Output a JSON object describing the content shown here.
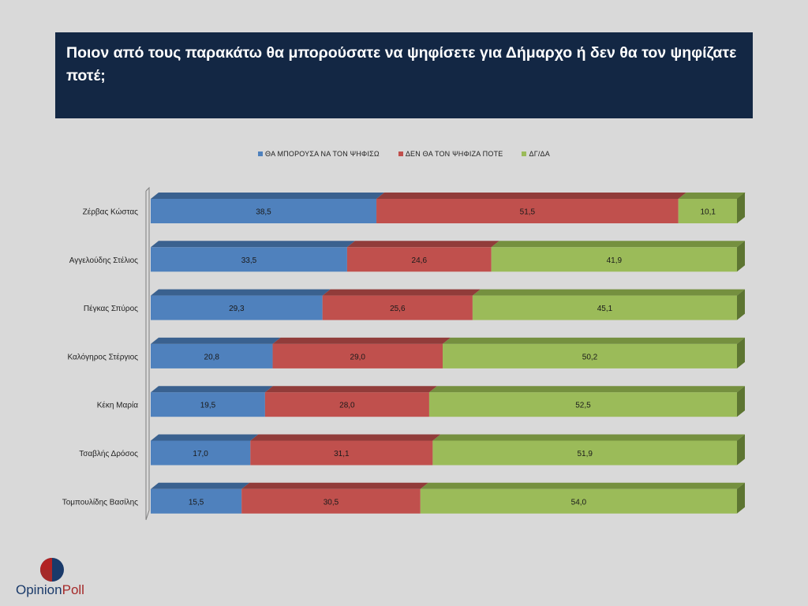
{
  "header": {
    "title": "Ποιον από τους παρακάτω θα μπορούσατε να ψηφίσετε για Δήμαρχο ή  δεν θα τον ψηφίζατε ποτέ;"
  },
  "brand": {
    "name_part1": "Opinion",
    "name_part2": "Poll"
  },
  "colors": {
    "background": "#d9d9d9",
    "title_bg": "#132744",
    "series_front": [
      "#4f81bd",
      "#c0504d",
      "#9bbb59"
    ],
    "series_top": [
      "#3a618f",
      "#913c3a",
      "#75903f"
    ],
    "series_side": [
      "#2f4f75",
      "#7a3230",
      "#5d7532"
    ]
  },
  "chart_data": {
    "type": "bar",
    "orientation": "horizontal",
    "stacked": true,
    "percent": true,
    "title": "Ποιον από τους παρακάτω θα μπορούσατε να ψηφίσετε για Δήμαρχο ή  δεν θα τον ψηφίζατε ποτέ;",
    "xlim": [
      0,
      100
    ],
    "legend_position": "top",
    "categories": [
      "Ζέρβας Κώστας",
      "Αγγελούδης Στέλιος",
      "Πέγκας Σπύρος",
      "Καλόγηρος Στέργιος",
      "Κέκη Μαρία",
      "Τσαβλής Δρόσος",
      "Τομπουλίδης Βασίλης"
    ],
    "series": [
      {
        "name": "ΘΑ ΜΠΟΡΟΥΣΑ ΝΑ ΤΟΝ ΨΗΦΙΣΩ",
        "values": [
          38.5,
          33.5,
          29.3,
          20.8,
          19.5,
          17.0,
          15.5
        ],
        "labels": [
          "38,5",
          "33,5",
          "29,3",
          "20,8",
          "19,5",
          "17,0",
          "15,5"
        ]
      },
      {
        "name": "ΔΕΝ  ΘΑ ΤΟΝ ΨΗΦΙΖΑ ΠΟΤΕ",
        "values": [
          51.5,
          24.6,
          25.6,
          29.0,
          28.0,
          31.1,
          30.5
        ],
        "labels": [
          "51,5",
          "24,6",
          "25,6",
          "29,0",
          "28,0",
          "31,1",
          "30,5"
        ]
      },
      {
        "name": "ΔΓ/ΔΑ",
        "values": [
          10.1,
          41.9,
          45.1,
          50.2,
          52.5,
          51.9,
          54.0
        ],
        "labels": [
          "10,1",
          "41,9",
          "45,1",
          "50,2",
          "52,5",
          "51,9",
          "54,0"
        ]
      }
    ]
  }
}
